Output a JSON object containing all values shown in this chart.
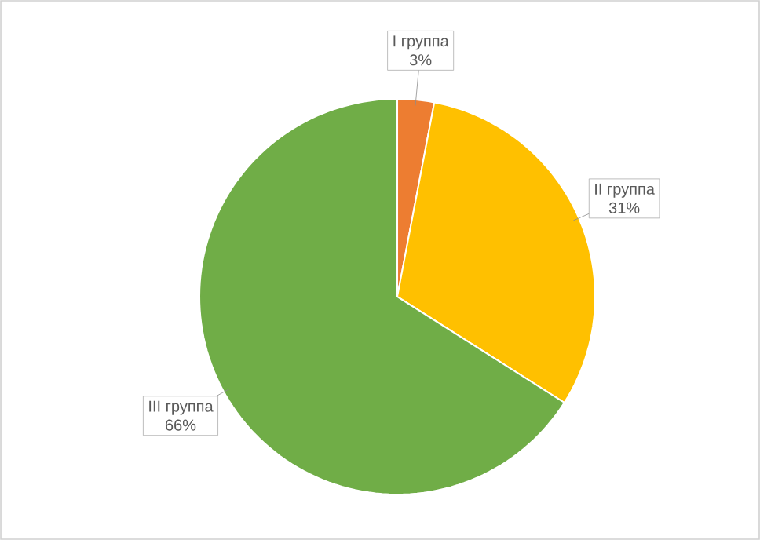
{
  "chart_data": {
    "type": "pie",
    "categories": [
      "I группа",
      "II группа",
      "III группа"
    ],
    "values": [
      3,
      31,
      66
    ],
    "value_labels": [
      "3%",
      "31%",
      "66%"
    ],
    "colors": [
      "#ed7d31",
      "#ffc000",
      "#70ad47"
    ]
  }
}
